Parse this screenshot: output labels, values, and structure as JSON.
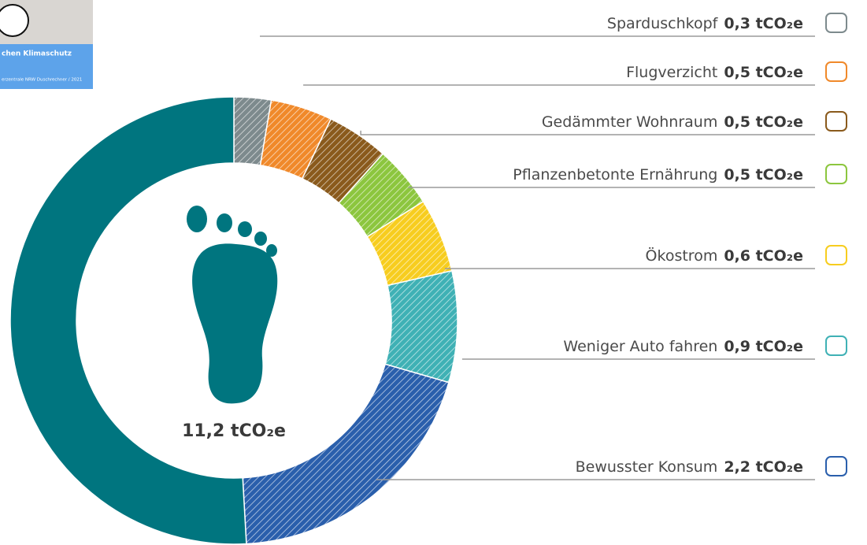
{
  "inset": {
    "title": "chen Klimaschutz",
    "source": "erzentrale NRW Duschrechner / 2021"
  },
  "chart_data": {
    "type": "donut",
    "center_label": "11,2 tCO₂e",
    "categories": [
      "Sparduschkopf",
      "Flugverzicht",
      "Gedämmter Wohnraum",
      "Pflanzenbetonte Ernährung",
      "Ökostrom",
      "Weniger Auto fahren",
      "Bewusster Konsum",
      null
    ],
    "values": [
      0.3,
      0.5,
      0.5,
      0.5,
      0.6,
      0.9,
      2.2,
      5.7
    ],
    "value_labels": [
      "0,3 tCO₂e",
      "0,5 tCO₂e",
      "0,5 tCO₂e",
      "0,5 tCO₂e",
      "0,6 tCO₂e",
      "0,9 tCO₂e",
      "2,2 tCO₂e",
      null
    ],
    "colors": [
      "#7d8a8d",
      "#f0892a",
      "#8a5a1c",
      "#8cc63e",
      "#f7cd1f",
      "#3fb1b5",
      "#2a5fac",
      "#00757f"
    ],
    "hatched": [
      true,
      true,
      true,
      true,
      true,
      true,
      true,
      false
    ]
  }
}
